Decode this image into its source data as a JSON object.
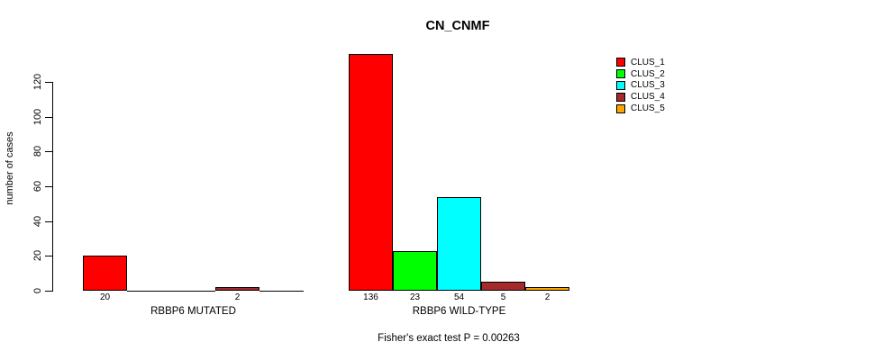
{
  "chart_data": {
    "type": "bar",
    "title": "CN_CNMF",
    "ylabel": "number of cases",
    "xlabel": "",
    "footer": "Fisher's exact test P = 0.00263",
    "ylim": [
      0,
      137
    ],
    "y_ticks": [
      0,
      20,
      40,
      60,
      80,
      100,
      120
    ],
    "grid": false,
    "legend_position": "right",
    "legend": [
      "CLUS_1",
      "CLUS_2",
      "CLUS_3",
      "CLUS_4",
      "CLUS_5"
    ],
    "series_colors": [
      "#ff0000",
      "#00ff00",
      "#00ffff",
      "#a52a2a",
      "#ffa500"
    ],
    "groups": [
      {
        "label": "RBBP6 MUTATED",
        "values": [
          20,
          0,
          0,
          2,
          0
        ],
        "bar_labels": [
          "20",
          "",
          "",
          "2",
          ""
        ]
      },
      {
        "label": "RBBP6 WILD-TYPE",
        "values": [
          136,
          23,
          54,
          5,
          2
        ],
        "bar_labels": [
          "136",
          "23",
          "54",
          "5",
          "2"
        ]
      }
    ]
  }
}
